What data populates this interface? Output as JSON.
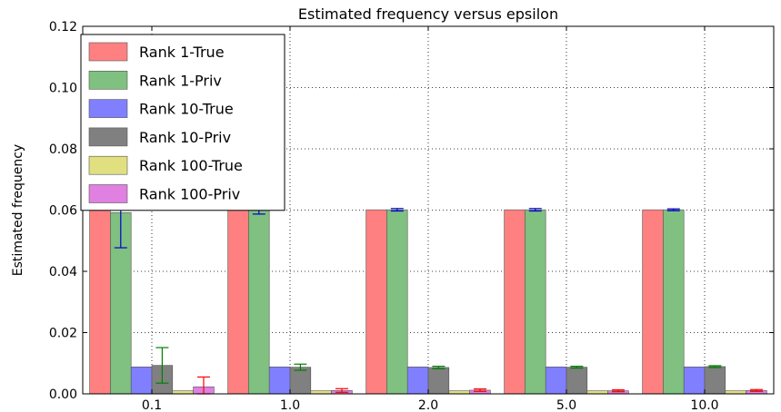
{
  "chart_data": {
    "type": "bar",
    "title": "Estimated frequency versus epsilon",
    "xlabel": "",
    "ylabel": "Estimated frequency",
    "ylim": [
      0,
      0.12
    ],
    "yticks": [
      "0.00",
      "0.02",
      "0.04",
      "0.06",
      "0.08",
      "0.10",
      "0.12"
    ],
    "categories": [
      "0.1",
      "1.0",
      "2.0",
      "5.0",
      "10.0"
    ],
    "grid": true,
    "legend_position": "top-left",
    "series": [
      {
        "name": "Rank 1-True",
        "color": "#ff8080",
        "values": [
          0.0601,
          0.0601,
          0.0601,
          0.0601,
          0.0601
        ]
      },
      {
        "name": "Rank 1-Priv",
        "color": "#80c080",
        "values": [
          0.0592,
          0.0599,
          0.0601,
          0.0601,
          0.0601
        ],
        "errors": [
          0.0115,
          0.0012,
          0.0004,
          0.0004,
          0.0003
        ],
        "error_color": "#0000cc"
      },
      {
        "name": "Rank 10-True",
        "color": "#8080ff",
        "values": [
          0.0088,
          0.0088,
          0.0088,
          0.0088,
          0.0088
        ]
      },
      {
        "name": "Rank 10-Priv",
        "color": "#808080",
        "values": [
          0.0093,
          0.0087,
          0.0086,
          0.0087,
          0.0089
        ],
        "errors": [
          0.0058,
          0.001,
          0.0004,
          0.0003,
          0.0003
        ],
        "error_color": "#008000"
      },
      {
        "name": "Rank 100-True",
        "color": "#e0e080",
        "values": [
          0.001,
          0.001,
          0.001,
          0.001,
          0.001
        ]
      },
      {
        "name": "Rank 100-Priv",
        "color": "#e080e0",
        "values": [
          0.0023,
          0.0011,
          0.0012,
          0.001,
          0.0011
        ],
        "errors": [
          0.0032,
          0.0006,
          0.0004,
          0.0003,
          0.0003
        ],
        "error_color": "#ff0000"
      }
    ]
  }
}
